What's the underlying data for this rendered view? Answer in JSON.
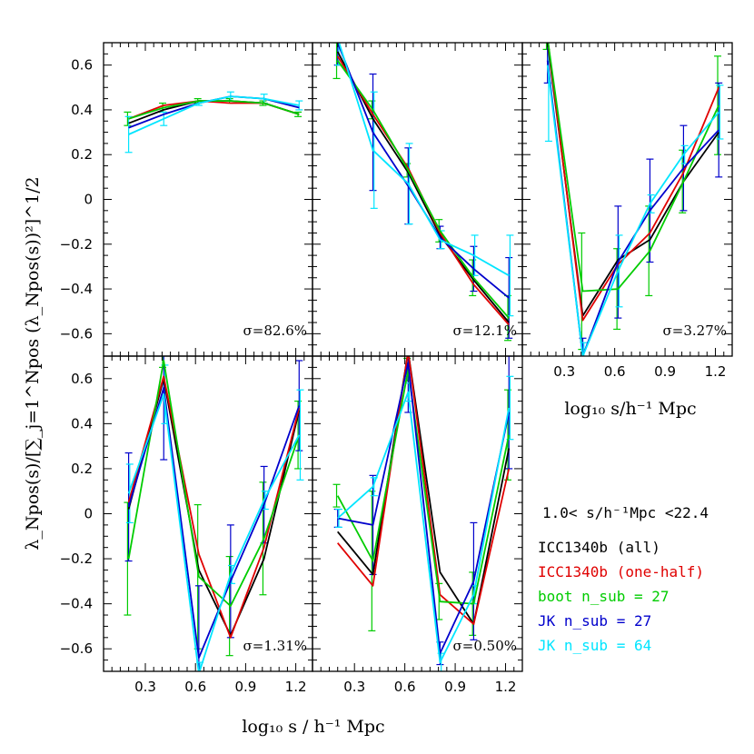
{
  "chart_data": {
    "type": "line",
    "x": [
      0.2,
      0.41,
      0.62,
      0.81,
      1.01,
      1.22
    ],
    "ylim": [
      -0.7,
      0.7
    ],
    "xlim": [
      0.05,
      1.3
    ],
    "x_ticks": [
      "0.3",
      "0.6",
      "0.9",
      "1.2"
    ],
    "x_tick_values": [
      0.3,
      0.6,
      0.9,
      1.2
    ],
    "y_ticks": [
      "0.6",
      "0.4",
      "0.2",
      "0",
      "−0.2",
      "−0.4",
      "−0.6"
    ],
    "y_tick_values": [
      0.6,
      0.4,
      0.2,
      0,
      -0.2,
      -0.4,
      -0.6
    ],
    "xlabel_main": "log₁₀ s / h⁻¹ Mpc",
    "xlabel_side": "log₁₀ s/h⁻¹ Mpc",
    "ylabel": "λ_Npos(s)/[∑_j=1^Npos (λ_Npos(s))²]^1/2",
    "series_styles": [
      {
        "name": "ICC1340b (all)",
        "color": "#000000"
      },
      {
        "name": "ICC1340b (one-half)",
        "color": "#e00000"
      },
      {
        "name": "boot n_sub = 27",
        "color": "#00cc00"
      },
      {
        "name": "JK n_sub = 27",
        "color": "#0000cc"
      },
      {
        "name": "JK n_sub = 64",
        "color": "#00e5ff"
      }
    ],
    "panels": [
      {
        "sigma": "σ=82.6%",
        "series": [
          {
            "name": "ICC1340b (all)",
            "values": [
              0.34,
              0.4,
              0.44,
              0.44,
              0.43,
              0.38
            ]
          },
          {
            "name": "ICC1340b (one-half)",
            "values": [
              0.36,
              0.42,
              0.44,
              0.43,
              0.43,
              0.38
            ]
          },
          {
            "name": "boot n_sub = 27",
            "values": [
              0.36,
              0.41,
              0.44,
              0.44,
              0.43,
              0.38
            ]
          },
          {
            "name": "JK n_sub = 27",
            "values": [
              0.32,
              0.38,
              0.43,
              0.46,
              0.45,
              0.41
            ]
          },
          {
            "name": "JK n_sub = 64",
            "values": [
              0.29,
              0.36,
              0.43,
              0.46,
              0.45,
              0.42
            ]
          }
        ],
        "error_bars": [
          {
            "color": "#00cc00",
            "values": [
              0.36,
              0.41,
              0.44,
              0.44,
              0.43,
              0.38
            ],
            "errors": [
              0.03,
              0.02,
              0.01,
              0.01,
              0.01,
              0.01
            ]
          },
          {
            "color": "#00e5ff",
            "values": [
              0.29,
              0.36,
              0.43,
              0.46,
              0.45,
              0.42
            ],
            "errors": [
              0.08,
              0.03,
              0.01,
              0.02,
              0.02,
              0.02
            ]
          }
        ]
      },
      {
        "sigma": "σ=12.1%",
        "series": [
          {
            "name": "ICC1340b (all)",
            "values": [
              0.66,
              0.36,
              0.12,
              -0.16,
              -0.36,
              -0.55
            ]
          },
          {
            "name": "ICC1340b (one-half)",
            "values": [
              0.64,
              0.38,
              0.14,
              -0.15,
              -0.38,
              -0.56
            ]
          },
          {
            "name": "boot n_sub = 27",
            "values": [
              0.62,
              0.4,
              0.13,
              -0.14,
              -0.35,
              -0.53
            ]
          },
          {
            "name": "JK n_sub = 27",
            "values": [
              0.7,
              0.3,
              0.06,
              -0.17,
              -0.31,
              -0.44
            ]
          },
          {
            "name": "JK n_sub = 64",
            "values": [
              0.72,
              0.22,
              0.07,
              -0.18,
              -0.25,
              -0.34
            ]
          }
        ],
        "error_bars": [
          {
            "color": "#00cc00",
            "values": [
              0.62,
              0.4,
              0.13,
              -0.14,
              -0.35,
              -0.53
            ],
            "errors": [
              0.08,
              0.04,
              0.03,
              0.05,
              0.08,
              0.1
            ]
          },
          {
            "color": "#0000cc",
            "values": [
              0.7,
              0.3,
              0.06,
              -0.17,
              -0.31,
              -0.44
            ],
            "errors": [
              0.1,
              0.26,
              0.17,
              0.05,
              0.1,
              0.18
            ]
          },
          {
            "color": "#00e5ff",
            "values": [
              0.72,
              0.22,
              0.07,
              -0.18,
              -0.25,
              -0.34
            ],
            "errors": [
              0.12,
              0.26,
              0.18,
              0.04,
              0.09,
              0.18
            ]
          }
        ]
      },
      {
        "sigma": "σ=3.27%",
        "series": [
          {
            "name": "ICC1340b (all)",
            "values": [
              0.7,
              -0.52,
              -0.27,
              -0.18,
              0.08,
              0.3
            ]
          },
          {
            "name": "ICC1340b (one-half)",
            "values": [
              0.72,
              -0.54,
              -0.29,
              -0.15,
              0.12,
              0.5
            ]
          },
          {
            "name": "boot n_sub = 27",
            "values": [
              0.72,
              -0.41,
              -0.4,
              -0.23,
              0.08,
              0.42
            ]
          },
          {
            "name": "JK n_sub = 27",
            "values": [
              0.62,
              -0.7,
              -0.28,
              -0.05,
              0.14,
              0.31
            ]
          },
          {
            "name": "JK n_sub = 64",
            "values": [
              0.6,
              -0.7,
              -0.32,
              -0.02,
              0.2,
              0.39
            ]
          }
        ],
        "error_bars": [
          {
            "color": "#00cc00",
            "values": [
              0.72,
              -0.41,
              -0.4,
              -0.23,
              0.08,
              0.42
            ],
            "errors": [
              0.05,
              0.26,
              0.18,
              0.2,
              0.14,
              0.22
            ]
          },
          {
            "color": "#0000cc",
            "values": [
              0.62,
              -0.7,
              -0.28,
              -0.05,
              0.14,
              0.31
            ],
            "errors": [
              0.1,
              0.08,
              0.25,
              0.23,
              0.19,
              0.21
            ]
          },
          {
            "color": "#00e5ff",
            "values": [
              0.6,
              -0.7,
              -0.32,
              -0.02,
              0.2,
              0.39
            ],
            "errors": [
              0.34,
              0.06,
              0.16,
              0.04,
              0.04,
              0.12
            ]
          }
        ]
      },
      {
        "sigma": "σ=1.31%",
        "series": [
          {
            "name": "ICC1340b (all)",
            "values": [
              0.02,
              0.6,
              -0.25,
              -0.54,
              -0.2,
              0.46
            ]
          },
          {
            "name": "ICC1340b (one-half)",
            "values": [
              0.05,
              0.61,
              -0.18,
              -0.55,
              -0.15,
              0.47
            ]
          },
          {
            "name": "boot n_sub = 27",
            "values": [
              -0.2,
              0.68,
              -0.28,
              -0.41,
              -0.11,
              0.35
            ]
          },
          {
            "name": "JK n_sub = 27",
            "values": [
              0.03,
              0.56,
              -0.64,
              -0.3,
              0.04,
              0.48
            ]
          },
          {
            "name": "JK n_sub = 64",
            "values": [
              0.09,
              0.53,
              -0.71,
              -0.27,
              0.06,
              0.35
            ]
          }
        ],
        "error_bars": [
          {
            "color": "#00cc00",
            "values": [
              -0.2,
              0.68,
              -0.28,
              -0.41,
              -0.11,
              0.35
            ],
            "errors": [
              0.25,
              0.03,
              0.32,
              0.22,
              0.25,
              0.15
            ]
          },
          {
            "color": "#0000cc",
            "values": [
              0.03,
              0.56,
              -0.64,
              -0.3,
              0.04,
              0.48
            ],
            "errors": [
              0.24,
              0.32,
              0.32,
              0.25,
              0.17,
              0.2
            ]
          },
          {
            "color": "#00e5ff",
            "values": [
              0.09,
              0.53,
              -0.71,
              -0.27,
              0.06,
              0.35
            ],
            "errors": [
              0.13,
              0.13,
              0.05,
              0.04,
              0.04,
              0.2
            ]
          }
        ]
      },
      {
        "sigma": "σ=0.50%",
        "series": [
          {
            "name": "ICC1340b (all)",
            "values": [
              -0.08,
              -0.27,
              0.72,
              -0.26,
              -0.49,
              0.29
            ]
          },
          {
            "name": "ICC1340b (one-half)",
            "values": [
              -0.13,
              -0.32,
              0.72,
              -0.36,
              -0.49,
              0.2
            ]
          },
          {
            "name": "boot n_sub = 27",
            "values": [
              0.08,
              -0.21,
              0.64,
              -0.39,
              -0.4,
              0.35
            ]
          },
          {
            "name": "JK n_sub = 27",
            "values": [
              -0.02,
              -0.05,
              0.67,
              -0.62,
              -0.3,
              0.45
            ]
          },
          {
            "name": "JK n_sub = 64",
            "values": [
              -0.02,
              0.12,
              0.54,
              -0.66,
              -0.36,
              0.47
            ]
          }
        ],
        "error_bars": [
          {
            "color": "#00cc00",
            "values": [
              0.08,
              -0.21,
              0.64,
              -0.39,
              -0.4,
              0.35
            ],
            "errors": [
              0.05,
              0.31,
              0.05,
              0.08,
              0.14,
              0.2
            ]
          },
          {
            "color": "#0000cc",
            "values": [
              -0.02,
              -0.05,
              0.67,
              -0.62,
              -0.3,
              0.45
            ],
            "errors": [
              0.04,
              0.22,
              0.22,
              0.05,
              0.26,
              0.25
            ]
          },
          {
            "color": "#00e5ff",
            "values": [
              -0.02,
              0.12,
              0.54,
              -0.66,
              -0.36,
              0.47
            ],
            "errors": [
              0.04,
              0.04,
              0.04,
              0.04,
              0.04,
              0.14
            ]
          }
        ]
      }
    ]
  },
  "legend": {
    "range": "1.0< s/h⁻¹Mpc <22.4",
    "items": [
      {
        "text": "ICC1340b (all)",
        "color": "#000000"
      },
      {
        "text": "ICC1340b (one-half)",
        "color": "#e00000"
      },
      {
        "text": "boot n_sub = 27",
        "color": "#00cc00"
      },
      {
        "text": "JK n_sub = 27",
        "color": "#0000cc"
      },
      {
        "text": "JK n_sub = 64",
        "color": "#00e5ff"
      }
    ]
  }
}
